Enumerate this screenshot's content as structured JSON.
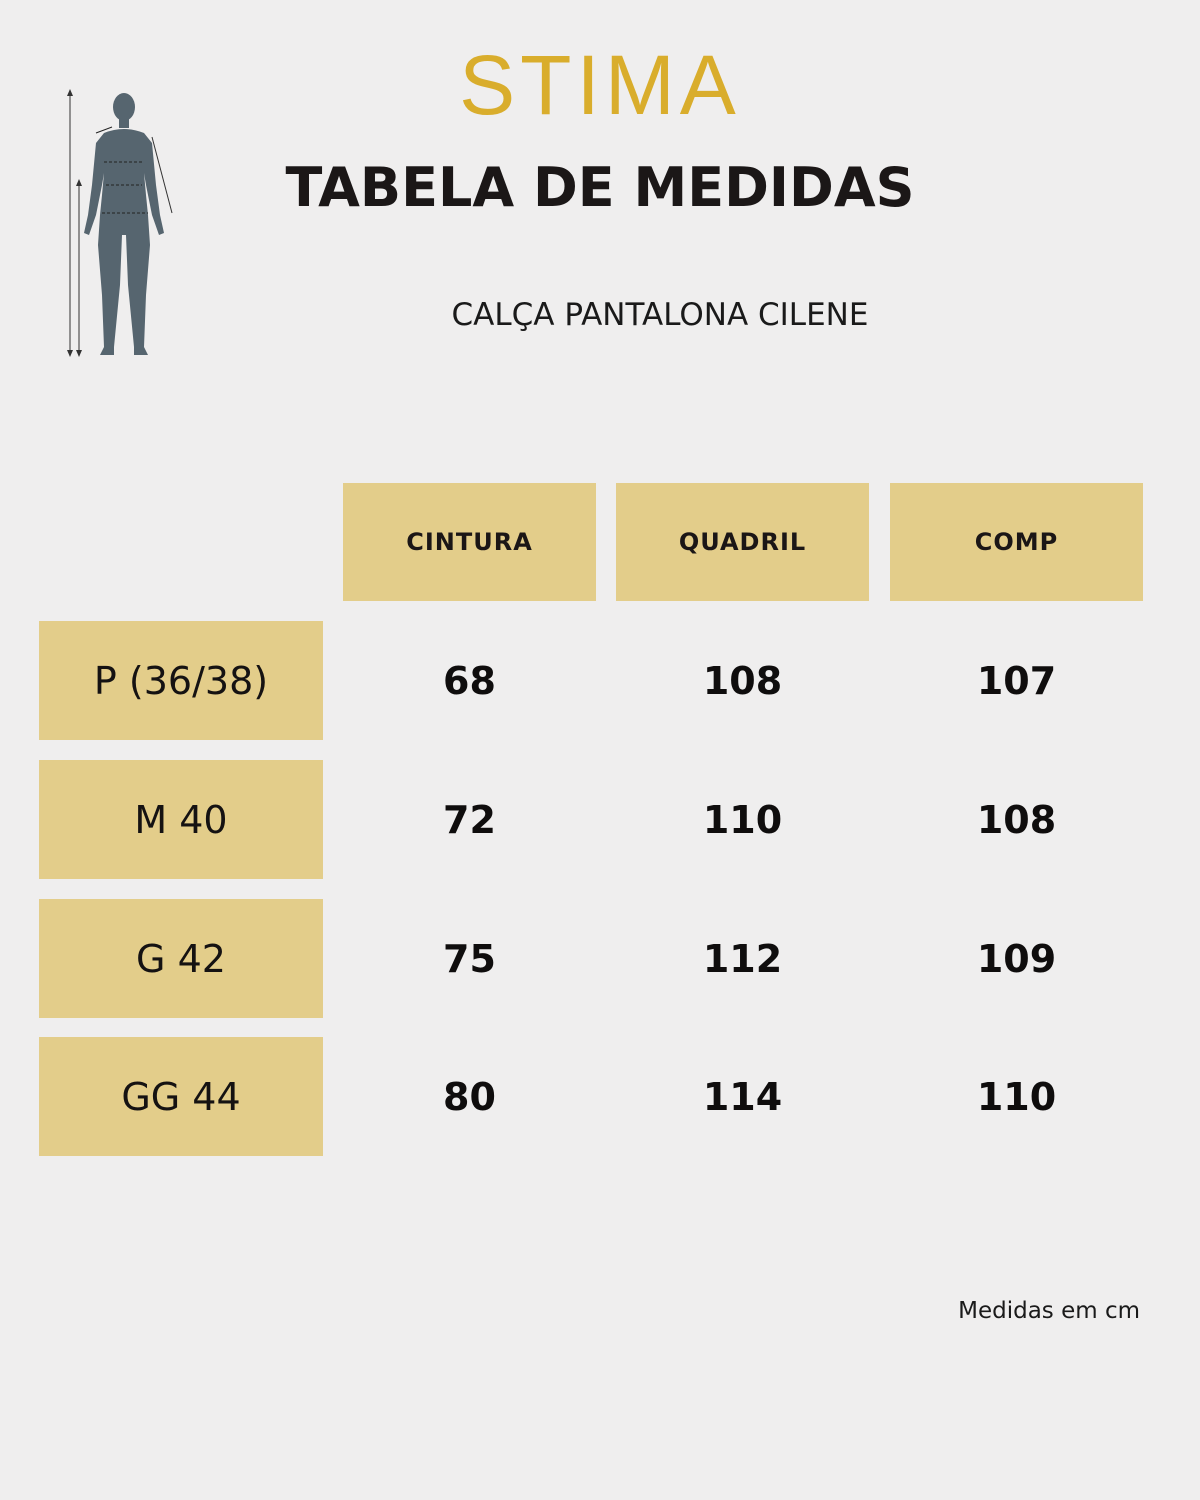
{
  "colors": {
    "background": "#efeeee",
    "accent_gold": "#d9ad2c",
    "cell_fill": "#e3cd8a",
    "figure": "#56656f"
  },
  "brand": {
    "logo_text": "STIMA"
  },
  "header": {
    "title": "TABELA DE MEDIDAS",
    "product_name": "CALÇA PANTALONA CILENE"
  },
  "illustration": {
    "icon": "body-measurement-figure-icon"
  },
  "table": {
    "columns": [
      "CINTURA",
      "QUADRIL",
      "COMP"
    ],
    "rows": [
      {
        "size": "P (36/38)",
        "values": [
          "68",
          "108",
          "107"
        ]
      },
      {
        "size": "M 40",
        "values": [
          "72",
          "110",
          "108"
        ]
      },
      {
        "size": "G 42",
        "values": [
          "75",
          "112",
          "109"
        ]
      },
      {
        "size": "GG 44",
        "values": [
          "80",
          "114",
          "110"
        ]
      }
    ]
  },
  "footer": {
    "note": "Medidas em cm"
  }
}
